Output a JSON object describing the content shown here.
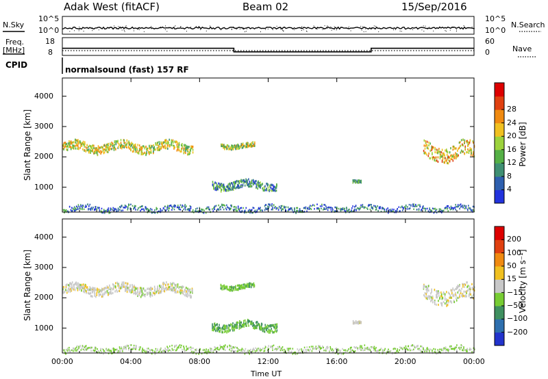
{
  "header": {
    "station": "Adak West (fitACF)",
    "beam": "Beam 02",
    "date": "15/Sep/2016"
  },
  "top_panels": {
    "nsky_label": "N.Sky",
    "nsearch_label": "N.Search",
    "nsky_ticks": [
      "10^5",
      "10^0"
    ],
    "nsearch_ticks": [
      "10^5",
      "10^0"
    ],
    "freq_label_1": "Freq.",
    "freq_label_2": "[MHz]",
    "freq_ticks": [
      "18",
      "8"
    ],
    "nave_label": "Nave",
    "nave_ticks": [
      "60",
      "0"
    ],
    "cpid_label": "CPID",
    "cpid_text": "normalsound (fast) 157 RF"
  },
  "chart_data": [
    {
      "type": "heatmap",
      "title": "",
      "xlabel": "Time UT",
      "ylabel": "Slant Range [km]",
      "x_ticks": [
        "00:00",
        "04:00",
        "08:00",
        "12:00",
        "16:00",
        "20:00",
        "00:00"
      ],
      "xlim_hours": [
        0,
        24
      ],
      "y_ticks": [
        "1000",
        "2000",
        "3000",
        "4000"
      ],
      "ylim": [
        180,
        4600
      ],
      "colorbar_label": "Power [dB]",
      "colorbar_ticks": [
        "4",
        "8",
        "12",
        "16",
        "20",
        "24",
        "28"
      ],
      "colorbar_range": [
        0,
        30
      ],
      "colorbar_colors": [
        "#2233dd",
        "#2e5fae",
        "#3f8f73",
        "#55b046",
        "#9cd23c",
        "#f0c020",
        "#f08a10",
        "#e04010",
        "#dd0000"
      ],
      "echo_regions": [
        {
          "t_start": 0.0,
          "t_end": 7.6,
          "range_center": 2350,
          "range_width": 300,
          "value": 16
        },
        {
          "t_start": 9.2,
          "t_end": 11.2,
          "range_center": 2400,
          "range_width": 150,
          "value": 14
        },
        {
          "t_start": 8.7,
          "t_end": 12.5,
          "range_center": 1100,
          "range_width": 250,
          "value": 8
        },
        {
          "t_start": 16.9,
          "t_end": 17.4,
          "range_center": 1250,
          "range_width": 80,
          "value": 10
        },
        {
          "t_start": 21.0,
          "t_end": 24.0,
          "range_center": 2200,
          "range_width": 500,
          "value": 18
        },
        {
          "t_start": 0.0,
          "t_end": 24.0,
          "range_center": 320,
          "range_width": 180,
          "value": 6
        }
      ]
    },
    {
      "type": "heatmap",
      "title": "",
      "xlabel": "Time UT",
      "ylabel": "Slant Range [km]",
      "x_ticks": [
        "00:00",
        "04:00",
        "08:00",
        "12:00",
        "16:00",
        "20:00",
        "00:00"
      ],
      "xlim_hours": [
        0,
        24
      ],
      "y_ticks": [
        "1000",
        "2000",
        "3000",
        "4000"
      ],
      "ylim": [
        180,
        4600
      ],
      "colorbar_label": "Velocity [m s⁻¹]",
      "colorbar_ticks": [
        "200",
        "100",
        "50",
        "15",
        "−15",
        "−50",
        "−100",
        "−200"
      ],
      "colorbar_range": [
        -250,
        250
      ],
      "colorbar_colors": [
        "#2233cc",
        "#2e6fae",
        "#3f9060",
        "#77cc33",
        "#c8c8c8",
        "#f0c020",
        "#f08a10",
        "#e04010",
        "#dd0000"
      ],
      "echo_regions": [
        {
          "t_start": 0.0,
          "t_end": 7.6,
          "range_center": 2300,
          "range_width": 300,
          "value": 0
        },
        {
          "t_start": 9.2,
          "t_end": 11.2,
          "range_center": 2400,
          "range_width": 150,
          "value": -60
        },
        {
          "t_start": 8.7,
          "t_end": 12.5,
          "range_center": 1100,
          "range_width": 250,
          "value": -80
        },
        {
          "t_start": 16.9,
          "t_end": 17.4,
          "range_center": 1250,
          "range_width": 80,
          "value": 0
        },
        {
          "t_start": 21.0,
          "t_end": 24.0,
          "range_center": 2150,
          "range_width": 500,
          "value": 0
        },
        {
          "t_start": 0.0,
          "t_end": 24.0,
          "range_center": 320,
          "range_width": 180,
          "value": -30
        }
      ]
    },
    {
      "type": "line",
      "title": "",
      "xlabel": "",
      "ylabel": "Freq. [MHz]",
      "x_hours": [
        0,
        10,
        10,
        18,
        18,
        24
      ],
      "freq_values": [
        12,
        12,
        10,
        10,
        12,
        12
      ],
      "ylim": [
        8,
        18
      ]
    }
  ]
}
